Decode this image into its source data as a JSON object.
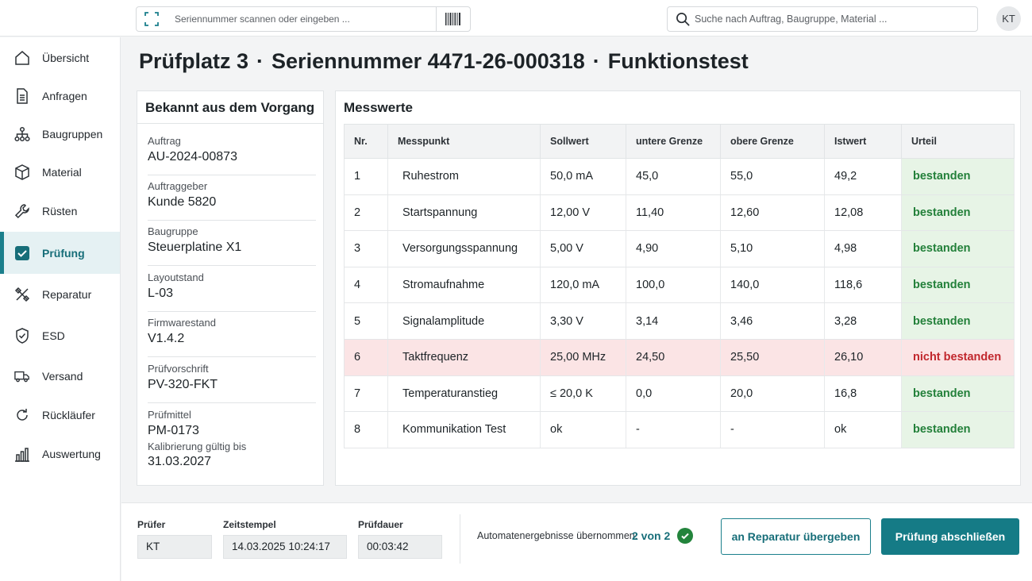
{
  "topbar": {
    "serial_placeholder": "Seriennummer scannen oder eingeben ...",
    "search_placeholder": "Suche nach Auftrag, Baugruppe, Material ...",
    "user_initials": "KT"
  },
  "sidebar": {
    "items": [
      {
        "label": "Übersicht",
        "icon": "home-icon"
      },
      {
        "label": "Anfragen",
        "icon": "document-icon"
      },
      {
        "label": "Baugruppen",
        "icon": "hierarchy-icon"
      },
      {
        "label": "Material",
        "icon": "box-icon"
      },
      {
        "label": "Rüsten",
        "icon": "wrench-icon"
      },
      {
        "label": "Prüfung",
        "icon": "checkbox-icon",
        "active": true
      },
      {
        "label": "Reparatur",
        "icon": "tools-icon"
      },
      {
        "label": "ESD",
        "icon": "shield-icon"
      },
      {
        "label": "Versand",
        "icon": "truck-icon"
      },
      {
        "label": "Rückläufer",
        "icon": "return-icon"
      },
      {
        "label": "Auswertung",
        "icon": "bar-chart-icon"
      }
    ]
  },
  "title": {
    "station": "Prüfplatz 3",
    "separator": "·",
    "serial": "Seriennummer 4471-26-000318",
    "test": "Funktionstest"
  },
  "info": {
    "heading": "Bekannt aus dem Vorgang",
    "fields": [
      {
        "label": "Auftrag",
        "value": "AU-2024-00873"
      },
      {
        "label": "Auftraggeber",
        "value": "Kunde 5820"
      },
      {
        "label": "Baugruppe",
        "value": "Steuerplatine X1"
      },
      {
        "label": "Layoutstand",
        "value": "L-03"
      },
      {
        "label": "Firmwarestand",
        "value": "V1.4.2"
      },
      {
        "label": "Prüfvorschrift",
        "value": "PV-320-FKT"
      },
      {
        "label": "Prüfmittel",
        "value": "PM-0173",
        "label2": "Kalibrierung gültig bis",
        "value2": "31.03.2027"
      }
    ]
  },
  "measurements": {
    "heading": "Messwerte",
    "columns": [
      "Nr.",
      "Messpunkt",
      "Sollwert",
      "untere Grenze",
      "obere Grenze",
      "Istwert",
      "Urteil"
    ],
    "rows": [
      {
        "nr": "1",
        "messpunkt": "Ruhestrom",
        "sollwert": "50,0 mA",
        "untere": "45,0",
        "obere": "55,0",
        "istwert": "49,2",
        "urteil": "bestanden",
        "status": "pass"
      },
      {
        "nr": "2",
        "messpunkt": "Startspannung",
        "sollwert": "12,00 V",
        "untere": "11,40",
        "obere": "12,60",
        "istwert": "12,08",
        "urteil": "bestanden",
        "status": "pass"
      },
      {
        "nr": "3",
        "messpunkt": "Versorgungsspannung",
        "sollwert": "5,00 V",
        "untere": "4,90",
        "obere": "5,10",
        "istwert": "4,98",
        "urteil": "bestanden",
        "status": "pass"
      },
      {
        "nr": "4",
        "messpunkt": "Stromaufnahme",
        "sollwert": "120,0 mA",
        "untere": "100,0",
        "obere": "140,0",
        "istwert": "118,6",
        "urteil": "bestanden",
        "status": "pass"
      },
      {
        "nr": "5",
        "messpunkt": "Signalamplitude",
        "sollwert": "3,30 V",
        "untere": "3,14",
        "obere": "3,46",
        "istwert": "3,28",
        "urteil": "bestanden",
        "status": "pass"
      },
      {
        "nr": "6",
        "messpunkt": "Taktfrequenz",
        "sollwert": "25,00 MHz",
        "untere": "24,50",
        "obere": "25,50",
        "istwert": "26,10",
        "urteil": "nicht bestanden",
        "status": "fail"
      },
      {
        "nr": "7",
        "messpunkt": "Temperaturanstieg",
        "sollwert": "≤ 20,0 K",
        "untere": "0,0",
        "obere": "20,0",
        "istwert": "16,8",
        "urteil": "bestanden",
        "status": "pass"
      },
      {
        "nr": "8",
        "messpunkt": "Kommunikation Test",
        "sollwert": "ok",
        "untere": "-",
        "obere": "-",
        "istwert": "ok",
        "urteil": "bestanden",
        "status": "pass"
      }
    ]
  },
  "footer": {
    "pruefer_label": "Prüfer",
    "pruefer_value": "KT",
    "zeitstempel_label": "Zeitstempel",
    "zeitstempel_value": "14.03.2025 10:24:17",
    "pruefdauer_label": "Prüfdauer",
    "pruefdauer_value": "00:03:42",
    "auto_label": "Automatenergebnisse übernommen:",
    "auto_value": "2 von 2",
    "repair_button": "an Reparatur übergeben",
    "finish_button": "Prüfung abschließen"
  },
  "colors": {
    "accent": "#157b86",
    "pass_bg": "#e7f4e6",
    "pass_text": "#23803a",
    "fail_bg": "#fbe4e5",
    "fail_text": "#c1272d"
  }
}
